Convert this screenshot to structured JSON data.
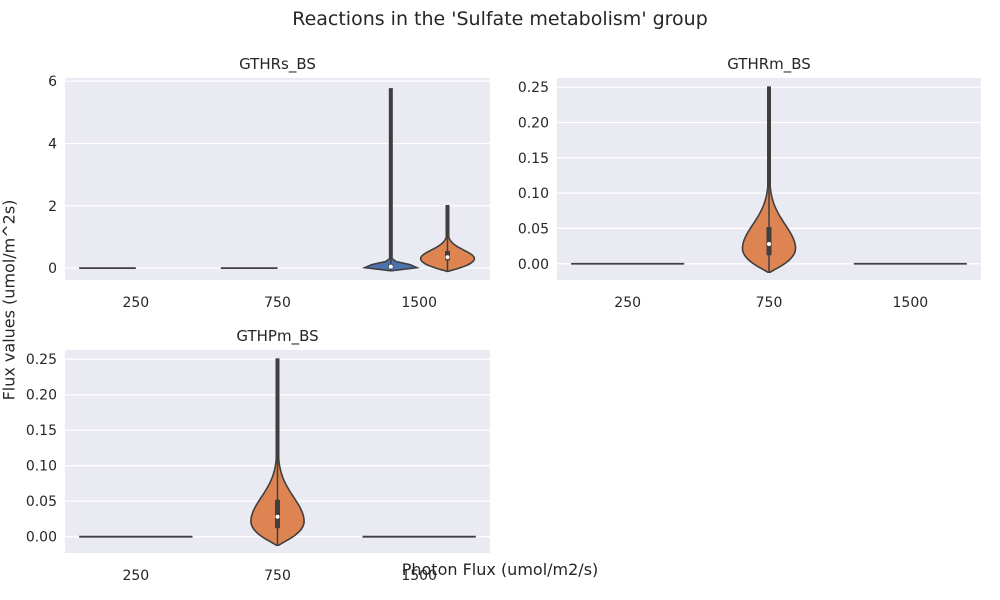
{
  "figure": {
    "title": "Reactions in the 'Sulfate metabolism' group",
    "ylabel": "Flux values (umol/m^2s)",
    "xlabel": "Photon Flux (umol/m2/s)"
  },
  "colors": {
    "background": "#EAEAF2",
    "grid": "#FFFFFF",
    "series_blue": "#4C72B0",
    "series_orange": "#DD8452",
    "line": "#3F3F3F"
  },
  "chart_data": [
    {
      "type": "violin",
      "title": "GTHRs_BS",
      "categories": [
        "250",
        "750",
        "1500"
      ],
      "ylim": [
        -0.38,
        6.1
      ],
      "yticks": [
        "0",
        "2",
        "4",
        "6"
      ],
      "grid": true,
      "series": [
        {
          "color": "#4C72B0",
          "values": [
            {
              "category": "250",
              "min": 0,
              "q1": 0,
              "median": 0,
              "q3": 0,
              "max": 0
            },
            {
              "category": "750",
              "min": 0,
              "q1": 0,
              "median": 0,
              "q3": 0,
              "max": 0
            },
            {
              "category": "1500",
              "min": -0.08,
              "q1": 0.02,
              "median": 0.05,
              "q3": 0.12,
              "max": 5.75
            }
          ]
        },
        {
          "color": "#DD8452",
          "values": [
            {
              "category": "1500",
              "min": -0.1,
              "q1": 0.25,
              "median": 0.35,
              "q3": 0.55,
              "max": 2.0
            }
          ]
        }
      ]
    },
    {
      "type": "violin",
      "title": "GTHRm_BS",
      "categories": [
        "250",
        "750",
        "1500"
      ],
      "ylim": [
        -0.023,
        0.263
      ],
      "yticks": [
        "0.00",
        "0.05",
        "0.10",
        "0.15",
        "0.20",
        "0.25"
      ],
      "grid": true,
      "series": [
        {
          "color": "#DD8452",
          "values": [
            {
              "category": "250",
              "min": 0,
              "q1": 0,
              "median": 0,
              "q3": 0,
              "max": 0
            },
            {
              "category": "750",
              "min": -0.012,
              "q1": 0.012,
              "median": 0.028,
              "q3": 0.052,
              "max": 0.25
            },
            {
              "category": "1500",
              "min": 0,
              "q1": 0,
              "median": 0,
              "q3": 0,
              "max": 0
            }
          ]
        }
      ]
    },
    {
      "type": "violin",
      "title": "GTHPm_BS",
      "categories": [
        "250",
        "750",
        "1500"
      ],
      "ylim": [
        -0.023,
        0.263
      ],
      "yticks": [
        "0.00",
        "0.05",
        "0.10",
        "0.15",
        "0.20",
        "0.25"
      ],
      "grid": true,
      "series": [
        {
          "color": "#DD8452",
          "values": [
            {
              "category": "250",
              "min": 0,
              "q1": 0,
              "median": 0,
              "q3": 0,
              "max": 0
            },
            {
              "category": "750",
              "min": -0.012,
              "q1": 0.012,
              "median": 0.028,
              "q3": 0.052,
              "max": 0.25
            },
            {
              "category": "1500",
              "min": 0,
              "q1": 0,
              "median": 0,
              "q3": 0,
              "max": 0
            }
          ]
        }
      ]
    }
  ]
}
